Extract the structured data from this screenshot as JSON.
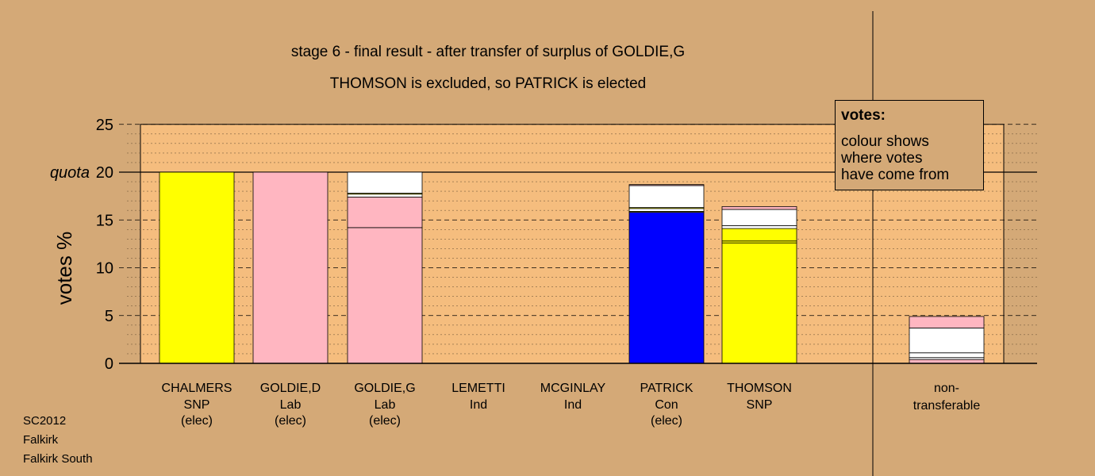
{
  "chart_data": {
    "type": "bar",
    "title": "stage 6 - final result - after transfer of surplus of GOLDIE,G",
    "subtitle": "THOMSON is excluded, so PATRICK is elected",
    "ylabel": "votes %",
    "ylim": [
      0,
      25
    ],
    "yticks": [
      0,
      5,
      10,
      15,
      20,
      25
    ],
    "quota": {
      "label": "quota",
      "value": 20
    },
    "grid": true,
    "legend": {
      "placement": "top-right",
      "heading": "votes:",
      "lines": [
        "colour shows",
        "where votes",
        "have come from"
      ]
    },
    "categories": [
      {
        "name": "CHALMERS",
        "party": "SNP",
        "status": "(elec)"
      },
      {
        "name": "GOLDIE,D",
        "party": "Lab",
        "status": "(elec)"
      },
      {
        "name": "GOLDIE,G",
        "party": "Lab",
        "status": "(elec)"
      },
      {
        "name": "LEMETTI",
        "party": "Ind",
        "status": ""
      },
      {
        "name": "MCGINLAY",
        "party": "Ind",
        "status": ""
      },
      {
        "name": "PATRICK",
        "party": "Con",
        "status": "(elec)"
      },
      {
        "name": "THOMSON",
        "party": "SNP",
        "status": ""
      }
    ],
    "nontransferable": {
      "label_line1": "non-",
      "label_line2": "transferable"
    },
    "stacks": [
      [
        {
          "value": 20.0,
          "color": "#ffff00"
        }
      ],
      [
        {
          "value": 20.0,
          "color": "#ffb6c1"
        }
      ],
      [
        {
          "value": 14.2,
          "color": "#ffb6c1"
        },
        {
          "value": 3.2,
          "color": "#ffb6c1"
        },
        {
          "value": 0.3,
          "color": "#ffffff"
        },
        {
          "value": 0.1,
          "color": "#ffff00"
        },
        {
          "value": 2.2,
          "color": "#ffffff"
        }
      ],
      [],
      [],
      [
        {
          "value": 15.8,
          "color": "#0000ff"
        },
        {
          "value": 0.1,
          "color": "#ffff00"
        },
        {
          "value": 0.3,
          "color": "#ffffff"
        },
        {
          "value": 0.1,
          "color": "#ffff00"
        },
        {
          "value": 2.3,
          "color": "#ffffff"
        },
        {
          "value": 0.1,
          "color": "#ffb6c1"
        }
      ],
      [
        {
          "value": 12.6,
          "color": "#ffff00"
        },
        {
          "value": 0.2,
          "color": "#ffff00"
        },
        {
          "value": 1.3,
          "color": "#ffff00"
        },
        {
          "value": 0.3,
          "color": "#ffffff"
        },
        {
          "value": 1.7,
          "color": "#ffffff"
        },
        {
          "value": 0.3,
          "color": "#ffb6c1"
        }
      ],
      [
        {
          "value": 0.4,
          "color": "#ffb6c1"
        },
        {
          "value": 0.2,
          "color": "#ffffff"
        },
        {
          "value": 0.5,
          "color": "#ffffff"
        },
        {
          "value": 2.6,
          "color": "#ffffff"
        },
        {
          "value": 1.2,
          "color": "#ffb6c1"
        }
      ]
    ],
    "colors": {
      "background": "#d4a977",
      "plot_background": "#f5bd7e"
    }
  },
  "source": {
    "election": "SC2012",
    "council": "Falkirk",
    "ward": "Falkirk South"
  }
}
